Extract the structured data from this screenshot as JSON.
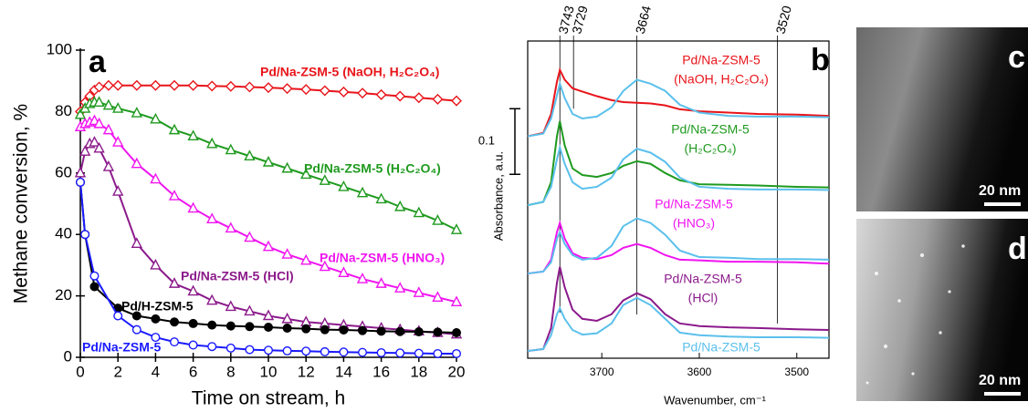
{
  "chart_data": [
    {
      "type": "line",
      "panel": "a",
      "xlabel": "Time on stream, h",
      "ylabel": "Methane conversion, %",
      "xlim": [
        0,
        20
      ],
      "xticks": [
        0,
        2,
        4,
        6,
        8,
        10,
        12,
        14,
        16,
        18,
        20
      ],
      "ylim": [
        0,
        100
      ],
      "yticks": [
        0,
        20,
        40,
        60,
        80,
        100
      ],
      "series": [
        {
          "name": "Pd/Na-ZSM-5 (NaOH, H₂C₂O₄)",
          "color": "#e8141a",
          "marker": "diamond",
          "x": [
            0,
            0.25,
            0.5,
            0.75,
            1,
            1.5,
            2,
            3,
            4,
            5,
            6,
            7,
            8,
            9,
            10,
            11,
            12,
            13,
            14,
            15,
            16,
            17,
            18,
            19,
            20
          ],
          "values": [
            80,
            83,
            85,
            87,
            88,
            88.5,
            88.5,
            88.5,
            88.5,
            88.5,
            88.5,
            88.3,
            88.2,
            88,
            87.8,
            87.5,
            87.2,
            86.8,
            86.4,
            86,
            85.5,
            85,
            84.5,
            84,
            83.5
          ]
        },
        {
          "name": "Pd/Na-ZSM-5 (H₂C₂O₄)",
          "color": "#1f9a1f",
          "marker": "triangle",
          "x": [
            0,
            0.25,
            0.5,
            0.75,
            1,
            1.5,
            2,
            3,
            4,
            5,
            6,
            7,
            8,
            9,
            10,
            11,
            12,
            13,
            14,
            15,
            16,
            17,
            18,
            19,
            20
          ],
          "values": [
            79,
            81,
            82.5,
            83,
            83,
            82,
            81,
            79.5,
            77.5,
            74,
            72,
            69.5,
            67.5,
            65.5,
            63.5,
            61.5,
            59.5,
            57.5,
            55.5,
            53.5,
            51.5,
            49,
            47,
            44.5,
            41.5
          ]
        },
        {
          "name": "Pd/Na-ZSM-5 (HNO₃)",
          "color": "#f015f0",
          "marker": "triangle",
          "x": [
            0,
            0.25,
            0.5,
            0.75,
            1,
            1.5,
            2,
            3,
            4,
            5,
            6,
            7,
            8,
            9,
            10,
            11,
            12,
            13,
            14,
            15,
            16,
            17,
            18,
            19,
            20
          ],
          "values": [
            75,
            76,
            76.5,
            77,
            76,
            74,
            70,
            63,
            58,
            52.5,
            48.5,
            45,
            42,
            39,
            36,
            33.5,
            31.5,
            29.5,
            27.5,
            25.5,
            24,
            22.5,
            21,
            19.5,
            18
          ]
        },
        {
          "name": "Pd/Na-ZSM-5 (HCl)",
          "color": "#8b1a8b",
          "marker": "triangle",
          "x": [
            0,
            0.25,
            0.5,
            0.75,
            1,
            1.5,
            2,
            3,
            4,
            5,
            6,
            7,
            8,
            9,
            10,
            11,
            12,
            13,
            14,
            15,
            16,
            17,
            18,
            19,
            20
          ],
          "values": [
            60,
            67,
            69.5,
            70,
            68,
            62,
            54,
            37,
            30,
            24,
            21.5,
            18.5,
            16.5,
            15,
            13.5,
            12.5,
            11.5,
            11,
            10.5,
            10,
            9.5,
            9,
            8.5,
            8,
            7.5
          ]
        },
        {
          "name": "Pd/H-ZSM-5",
          "color": "#000000",
          "marker": "filled-circle",
          "x": [
            0,
            0.25,
            0.75,
            2,
            3,
            4,
            5,
            6,
            7,
            8,
            9,
            10,
            11,
            12,
            13,
            14,
            15,
            16,
            17,
            18,
            19,
            20
          ],
          "values": [
            57,
            40,
            23,
            16,
            13.5,
            12.5,
            11.5,
            11,
            10.5,
            10.2,
            10,
            9.8,
            9.5,
            9.3,
            9,
            8.9,
            8.7,
            8.5,
            8.4,
            8.3,
            8.2,
            8
          ]
        },
        {
          "name": "Pd/Na-ZSM-5",
          "color": "#1a1aff",
          "marker": "open-circle",
          "x": [
            0,
            0.25,
            0.75,
            2,
            3,
            4,
            5,
            6,
            7,
            8,
            9,
            10,
            11,
            12,
            13,
            14,
            15,
            16,
            17,
            18,
            19,
            20
          ],
          "values": [
            57,
            40,
            26.5,
            13.5,
            9,
            6.5,
            5,
            4,
            3.5,
            3,
            2.5,
            2.3,
            2.1,
            2,
            1.8,
            1.7,
            1.6,
            1.5,
            1.4,
            1.3,
            1.2,
            1.2
          ]
        }
      ]
    },
    {
      "type": "spectra",
      "panel": "b",
      "xlabel": "Wavenumber, cm⁻¹",
      "ylabel": "Absorbance, a.u.",
      "xlim": [
        3776,
        3467
      ],
      "xticks": [
        3700,
        3600,
        3500
      ],
      "ylim": [
        0,
        0.483
      ],
      "scale_bar": 0.1,
      "reference_lines": [
        3743,
        3729,
        3664,
        3520
      ],
      "x": [
        3776,
        3760,
        3752,
        3746,
        3743,
        3738,
        3730,
        3720,
        3705,
        3690,
        3678,
        3664,
        3650,
        3635,
        3620,
        3600,
        3570,
        3540,
        3500,
        3467
      ],
      "series": [
        {
          "label": [
            "Pd/Na-ZSM-5",
            "(NaOH, H₂C₂O₄)"
          ],
          "color": "#e8141a",
          "values": [
            0.338,
            0.343,
            0.372,
            0.421,
            0.439,
            0.424,
            0.411,
            0.406,
            0.399,
            0.393,
            0.39,
            0.389,
            0.388,
            0.385,
            0.379,
            0.376,
            0.374,
            0.372,
            0.371,
            0.369
          ]
        },
        {
          "color": "#5bc0ec",
          "values": [
            0.338,
            0.342,
            0.365,
            0.4,
            0.418,
            0.396,
            0.372,
            0.365,
            0.368,
            0.382,
            0.407,
            0.424,
            0.418,
            0.407,
            0.386,
            0.374,
            0.369,
            0.368,
            0.368,
            0.367
          ]
        },
        {
          "label": [
            "Pd/Na-ZSM-5",
            "(H₂C₂O₄)"
          ],
          "color": "#1f9a1f",
          "values": [
            0.233,
            0.238,
            0.268,
            0.338,
            0.361,
            0.324,
            0.289,
            0.279,
            0.276,
            0.282,
            0.293,
            0.3,
            0.296,
            0.282,
            0.271,
            0.265,
            0.264,
            0.263,
            0.261,
            0.26
          ]
        },
        {
          "color": "#5bc0ec",
          "values": [
            0.233,
            0.238,
            0.261,
            0.303,
            0.321,
            0.296,
            0.268,
            0.258,
            0.261,
            0.275,
            0.303,
            0.319,
            0.313,
            0.299,
            0.275,
            0.261,
            0.258,
            0.257,
            0.257,
            0.256
          ]
        },
        {
          "label": [
            "Pd/Na-ZSM-5",
            "(HNO₃)"
          ],
          "color": "#f015f0",
          "values": [
            0.129,
            0.132,
            0.15,
            0.192,
            0.206,
            0.182,
            0.16,
            0.153,
            0.151,
            0.157,
            0.168,
            0.174,
            0.168,
            0.157,
            0.15,
            0.149,
            0.147,
            0.147,
            0.146,
            0.144
          ]
        },
        {
          "color": "#5bc0ec",
          "values": [
            0.129,
            0.132,
            0.146,
            0.182,
            0.192,
            0.174,
            0.157,
            0.15,
            0.153,
            0.171,
            0.201,
            0.213,
            0.206,
            0.188,
            0.164,
            0.154,
            0.153,
            0.151,
            0.151,
            0.15
          ]
        },
        {
          "label": [
            "Pd/Na-ZSM-5",
            "(HCl)"
          ],
          "color": "#8b1a8b",
          "values": [
            0.011,
            0.014,
            0.046,
            0.115,
            0.139,
            0.108,
            0.074,
            0.06,
            0.057,
            0.067,
            0.088,
            0.099,
            0.09,
            0.067,
            0.053,
            0.049,
            0.047,
            0.046,
            0.044,
            0.043
          ]
        },
        {
          "label": [
            "Pd/Na-ZSM-5"
          ],
          "color": "#5bc0ec",
          "values": [
            0.011,
            0.014,
            0.035,
            0.067,
            0.076,
            0.06,
            0.043,
            0.036,
            0.038,
            0.053,
            0.081,
            0.092,
            0.081,
            0.06,
            0.039,
            0.035,
            0.033,
            0.032,
            0.032,
            0.031
          ]
        }
      ]
    }
  ],
  "images": [
    {
      "letter": "c",
      "scale_label": "20 nm"
    },
    {
      "letter": "d",
      "scale_label": "20 nm"
    }
  ]
}
